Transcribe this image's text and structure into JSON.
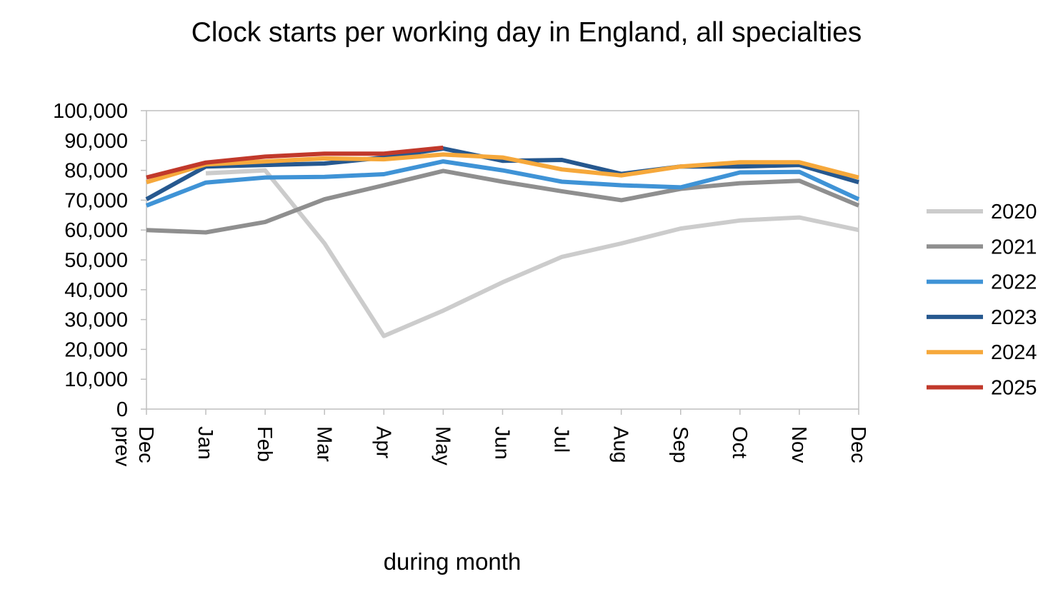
{
  "chart_data": {
    "type": "line",
    "title": "Clock starts per working day in England, all specialties",
    "xlabel": "during month",
    "ylabel": "",
    "ylim": [
      0,
      100000
    ],
    "yticks": [
      "0",
      "10,000",
      "20,000",
      "30,000",
      "40,000",
      "50,000",
      "60,000",
      "70,000",
      "80,000",
      "90,000",
      "100,000"
    ],
    "categories": [
      "Dec prev",
      "Jan",
      "Feb",
      "Mar",
      "Apr",
      "May",
      "Jun",
      "Jul",
      "Aug",
      "Sep",
      "Oct",
      "Nov",
      "Dec"
    ],
    "grid": false,
    "legend_position": "right",
    "series": [
      {
        "name": "2020",
        "color": "#cccccc",
        "values": [
          null,
          79000,
          80000,
          55500,
          24500,
          33000,
          42500,
          51000,
          55500,
          60500,
          63200,
          64200,
          60000
        ]
      },
      {
        "name": "2021",
        "color": "#8f8f8f",
        "values": [
          60000,
          59200,
          62700,
          70300,
          75000,
          79800,
          76200,
          73000,
          70000,
          73800,
          75700,
          76500,
          68200
        ]
      },
      {
        "name": "2022",
        "color": "#3f93d6",
        "values": [
          68200,
          75900,
          77600,
          77800,
          78700,
          83000,
          80000,
          76200,
          75000,
          74300,
          79300,
          79500,
          70300
        ]
      },
      {
        "name": "2023",
        "color": "#26588f",
        "values": [
          70300,
          81300,
          81800,
          82300,
          84300,
          87300,
          83200,
          83500,
          78800,
          81300,
          81300,
          81800,
          76000
        ]
      },
      {
        "name": "2024",
        "color": "#f6a83b",
        "values": [
          76000,
          82000,
          83000,
          84000,
          83700,
          85300,
          84300,
          80300,
          78300,
          81300,
          82700,
          82700,
          77600
        ]
      },
      {
        "name": "2025",
        "color": "#c1392b",
        "values": [
          77600,
          82600,
          84600,
          85600,
          85600,
          87600,
          null,
          null,
          null,
          null,
          null,
          null,
          null
        ]
      }
    ]
  }
}
